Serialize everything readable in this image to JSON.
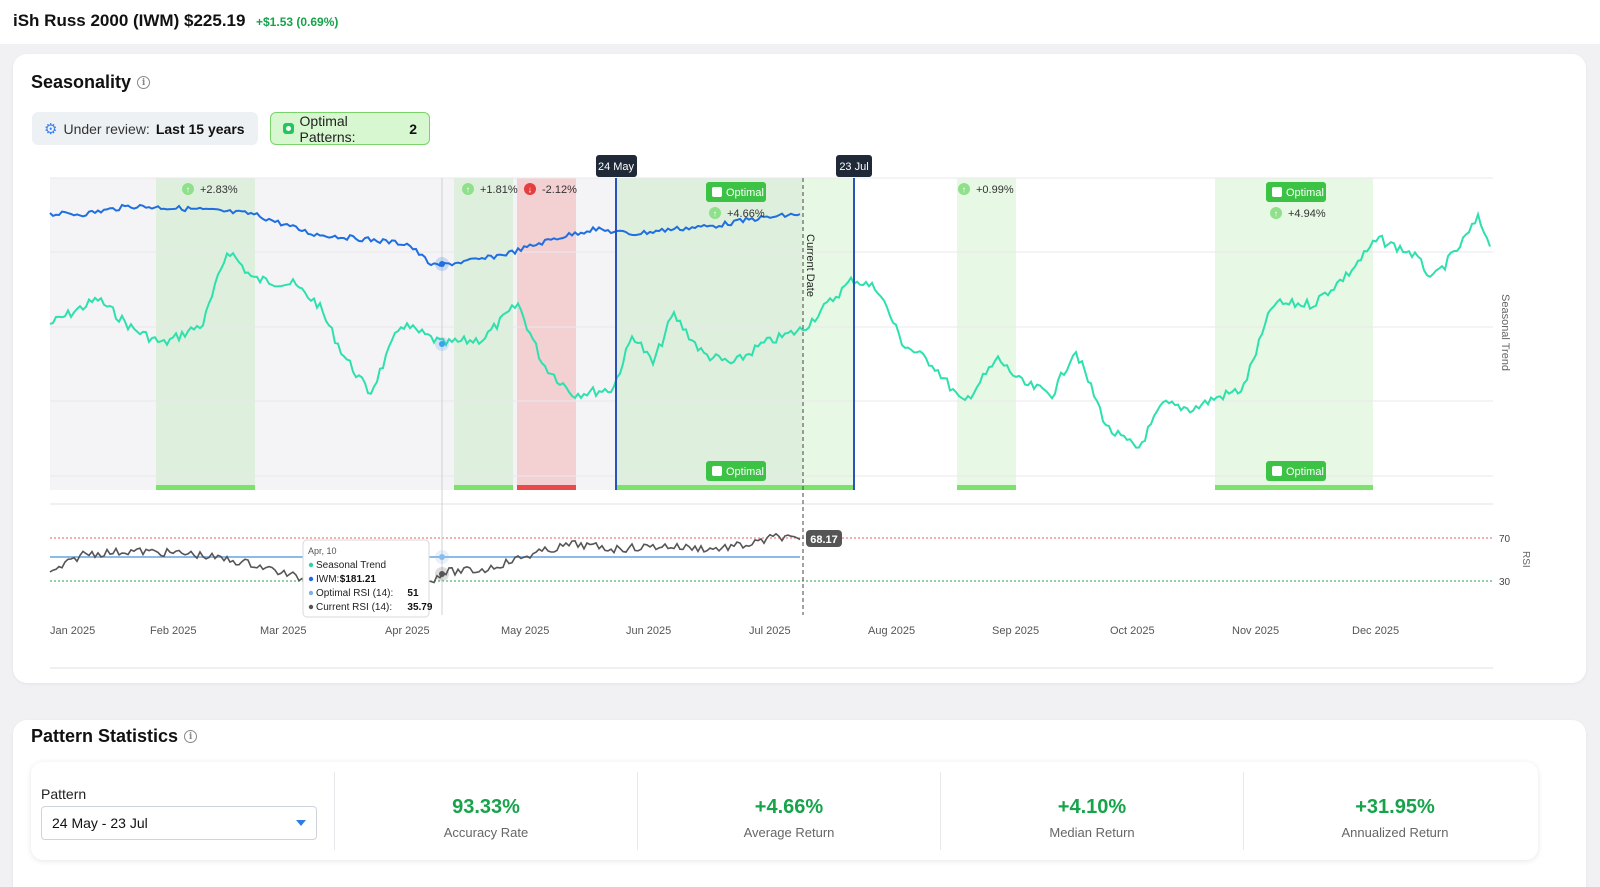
{
  "header": {
    "ticker": "iSh Russ 2000 (IWM)",
    "price": "$225.19",
    "change": "+$1.53 (0.69%)"
  },
  "seasonality": {
    "title": "Seasonality",
    "review_label": "Under review:",
    "review_value": "Last 15 years",
    "optimal_label": "Optimal Patterns:",
    "optimal_value": "2"
  },
  "chart": {
    "months": [
      "Jan 2025",
      "Feb 2025",
      "Mar 2025",
      "Apr 2025",
      "May 2025",
      "Jun 2025",
      "Jul 2025",
      "Aug 2025",
      "Sep 2025",
      "Oct 2025",
      "Nov 2025",
      "Dec 2025"
    ],
    "range_start": "24 May",
    "range_end": "23 Jul",
    "current_date_label": "Current Date",
    "right_axis_label": "Seasonal Trend",
    "rsi_axis_label": "RSI",
    "rsi_levels": [
      "70",
      "30"
    ],
    "rsi_current": "68.17",
    "optimal_tag": "Optimal",
    "windows": [
      {
        "ret": "+2.83%",
        "dir": "up"
      },
      {
        "ret": "+1.81%",
        "dir": "up"
      },
      {
        "ret": "-2.12%",
        "dir": "down"
      },
      {
        "ret": "+4.66%",
        "dir": "up",
        "optimal": true
      },
      {
        "ret": "+0.99%",
        "dir": "up"
      },
      {
        "ret": "+4.94%",
        "dir": "up",
        "optimal": true
      }
    ],
    "tooltip": {
      "date": "Apr, 10",
      "rows": [
        {
          "label": "Seasonal Trend",
          "value": "",
          "color": "#2dd4a8"
        },
        {
          "label": "IWM:",
          "value": "$181.21",
          "color": "#2563eb"
        },
        {
          "label": "Optimal RSI (14):",
          "value": "51",
          "color": "#7fb3e8"
        },
        {
          "label": "Current RSI (14):",
          "value": "35.79",
          "color": "#555555"
        }
      ]
    },
    "colors": {
      "seasonal": "#2ee0ad",
      "price": "#1f6fe0",
      "rsi": "#555555",
      "optimal_rsi": "#8dbbe9",
      "green": "#7be36b",
      "red": "#e84a4a"
    }
  },
  "stats": {
    "title": "Pattern Statistics",
    "pattern_label": "Pattern",
    "pattern_value": "24 May - 23 Jul",
    "items": [
      {
        "value": "93.33%",
        "label": "Accuracy Rate"
      },
      {
        "value": "+4.66%",
        "label": "Average Return"
      },
      {
        "value": "+4.10%",
        "label": "Median Return"
      },
      {
        "value": "+31.95%",
        "label": "Annualized Return"
      }
    ]
  }
}
